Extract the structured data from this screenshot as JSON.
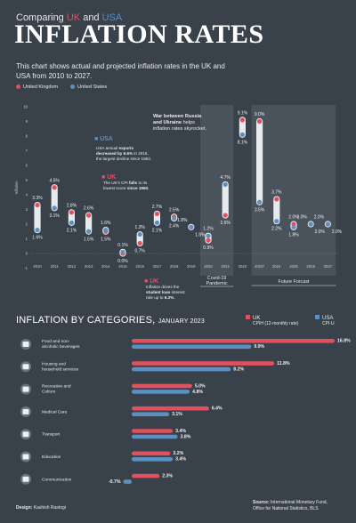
{
  "header": {
    "title_prefix": "Comparing ",
    "title_uk": "UK",
    "title_and": " and ",
    "title_us": "USA",
    "title_main": "INFLATION RATES",
    "intro": "This chart shows actual and projected inflation rates in the UK and USA from 2010 to 2027."
  },
  "legend": {
    "uk": "United Kingdom",
    "us": "United States"
  },
  "colors": {
    "uk": "#e0505f",
    "us": "#5d8fc0",
    "bg": "#39414a",
    "panel": "#4a525b"
  },
  "chart_data": [
    {
      "type": "dumbbell",
      "ylabel": "Inflation",
      "ylim": [
        -1,
        10
      ],
      "yticks": [
        "-1",
        "0",
        "1",
        "2",
        "3",
        "4",
        "5",
        "6",
        "7",
        "8",
        "9",
        "10"
      ],
      "categories": [
        "2010",
        "2011",
        "2012",
        "2013",
        "2014",
        "2015",
        "2016",
        "2017",
        "2018",
        "2019",
        "2020",
        "2021",
        "2022",
        "2023*",
        "2024",
        "2025",
        "2026",
        "2027"
      ],
      "series": [
        {
          "name": "United Kingdom",
          "values": [
            3.3,
            4.5,
            2.8,
            2.6,
            1.5,
            0.0,
            0.7,
            2.7,
            2.5,
            1.8,
            0.9,
            2.6,
            9.1,
            9.0,
            3.7,
            2.0,
            2.0,
            2.0
          ],
          "labels": [
            "3.3%",
            "4.5%",
            "2.8%",
            "2.6%",
            "1.5%",
            "0.0%",
            "0.7%",
            "2.7%",
            "2.5%",
            "1.8%",
            "0.9%",
            "2.6%",
            "9.1%",
            "9.0%",
            "3.7%",
            "2.0%",
            "2.0%",
            "2.0%"
          ]
        },
        {
          "name": "United States",
          "values": [
            1.6,
            3.1,
            2.1,
            1.5,
            1.6,
            0.1,
            1.3,
            2.1,
            2.4,
            1.8,
            1.2,
            4.7,
            8.1,
            3.5,
            2.2,
            1.8,
            2.0,
            2.0
          ],
          "labels": [
            "1.6%",
            "3.1%",
            "2.1%",
            "1.5%",
            "1.6%",
            "0.1%",
            "1.3%",
            "2.1%",
            "2.4%",
            "1.8%",
            "1.2%",
            "4.7%",
            "8.1%",
            "3.5%",
            "2.2%",
            "1.8%",
            "2.0%",
            "2.0%"
          ]
        }
      ],
      "panels": {
        "covid": "Covid-19 Pandemic",
        "forecast": "Future Forcast"
      },
      "annotations": {
        "usa_tag": "USA",
        "usa_note_a": "USA annual ",
        "usa_note_b": "exports",
        "usa_note_c": "decreased by 6.6% ",
        "usa_note_d": "in 2016,",
        "usa_note_e": "the largest decline since 1983.",
        "uk_tag": "UK",
        "uk_note_a": "The UK's CPI ",
        "uk_note_b": "falls",
        "uk_note_c": " to its",
        "uk_note_d": "lowest score ",
        "uk_note_e": "since 1960.",
        "uk2_tag": "UK",
        "uk2_note_a": "Inflation drives the",
        "uk2_note_b": "student loan",
        "uk2_note_c": " interest",
        "uk2_note_d": "rate up to ",
        "uk2_note_e": "6.3%.",
        "war_a": "War between Russia",
        "war_b": "and Ukraine",
        "war_c": " helps",
        "war_d": "inflation rates skyrocket."
      }
    },
    {
      "type": "bar",
      "title": "INFLATION BY CATEGORIES, ",
      "subtitle": "JANUARY 2023",
      "xlim": [
        -1,
        17
      ],
      "categories": [
        "Food and non-alcoholic beverages",
        "Housing and household services",
        "Recreation and Culture",
        "Medical Care",
        "Transport",
        "Education",
        "Communication"
      ],
      "category_lines": [
        [
          "Food and non-",
          "alcoholic beverages"
        ],
        [
          "Housing and",
          "household services"
        ],
        [
          "Recreation and",
          "Culture"
        ],
        [
          "Medical Care"
        ],
        [
          "Transport"
        ],
        [
          "Education"
        ],
        [
          "Communication"
        ]
      ],
      "icons": [
        "food-icon",
        "house-icon",
        "recreation-icon",
        "medical-icon",
        "transport-icon",
        "education-icon",
        "communication-icon"
      ],
      "series": [
        {
          "name": "UK",
          "values": [
            16.8,
            11.8,
            5.0,
            6.4,
            3.4,
            3.2,
            2.3
          ],
          "labels": [
            "16.8%",
            "11.8%",
            "5.0%",
            "6.4%",
            "3.4%",
            "3.2%",
            "2.3%"
          ]
        },
        {
          "name": "USA",
          "values": [
            9.9,
            8.2,
            4.8,
            3.1,
            3.8,
            3.4,
            -0.7
          ],
          "labels": [
            "9.9%",
            "8.2%",
            "4.8%",
            "3.1%",
            "3.8%",
            "3.4%",
            "-0.7%"
          ]
        }
      ],
      "legend": {
        "uk_name": "UK",
        "uk_sub": "CPIH (12-monthly rate)",
        "us_name": "USA",
        "us_sub": "CPI-U"
      }
    }
  ],
  "footer": {
    "design_label": "Design: ",
    "design_name": "Kashish Rastogi",
    "source_label": "Source: ",
    "source_a": "International Monetary Fund,",
    "source_b": "Office for National Statistics, BLS"
  }
}
